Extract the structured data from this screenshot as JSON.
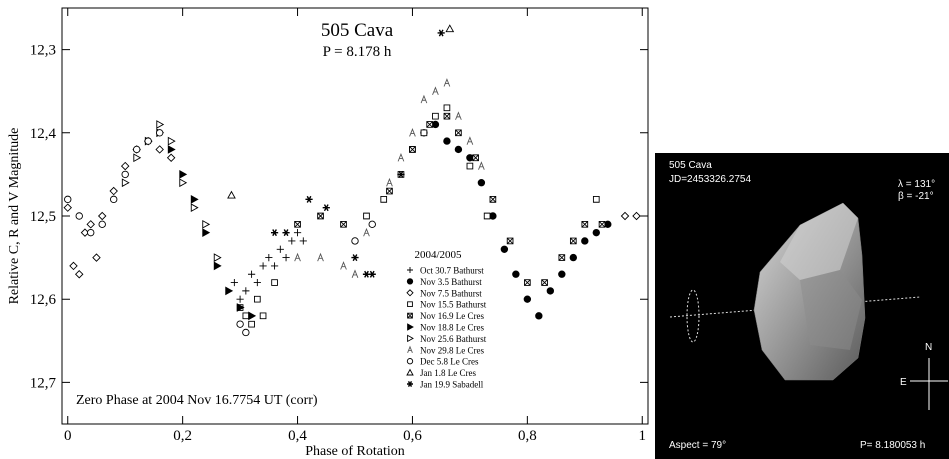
{
  "chart_data": {
    "type": "scatter",
    "title": "505 Cava",
    "subtitle": "P = 8.178 h",
    "annotation": "Zero Phase at 2004 Nov 16.7754 UT (corr)",
    "x_label": "Phase of Rotation",
    "y_label": "Relative C, R and V Magnitude",
    "xlim": [
      -0.01,
      1.01
    ],
    "xticks": [
      0,
      {
        "value": 0.2,
        "label": "0,2"
      },
      {
        "value": 0.4,
        "label": "0,4"
      },
      {
        "value": 0.6,
        "label": "0,6"
      },
      {
        "value": 0.8,
        "label": "0,8"
      },
      1
    ],
    "ylim": [
      12.25,
      12.75
    ],
    "y_inverted": true,
    "yticks": [
      {
        "value": 12.3,
        "label": "12,3"
      },
      {
        "value": 12.4,
        "label": "12,4"
      },
      {
        "value": 12.5,
        "label": "12,5"
      },
      {
        "value": 12.6,
        "label": "12,6"
      },
      {
        "value": 12.7,
        "label": "12,7"
      }
    ],
    "grid": false,
    "legend_title": "2004/2005",
    "legend_position": "lower right",
    "series": [
      {
        "name": "Oct 30.7 Bathurst",
        "marker": "plus",
        "color": "#000000",
        "x": [
          0.29,
          0.3,
          0.31,
          0.32,
          0.33,
          0.34,
          0.35,
          0.36,
          0.37,
          0.38,
          0.39,
          0.4,
          0.41
        ],
        "values": [
          12.58,
          12.6,
          12.59,
          12.57,
          12.58,
          12.56,
          12.55,
          12.56,
          12.54,
          12.55,
          12.53,
          12.52,
          12.53
        ]
      },
      {
        "name": "Nov 3.5 Bathurst",
        "marker": "circle-filled",
        "color": "#000000",
        "x": [
          0.62,
          0.64,
          0.66,
          0.68,
          0.7,
          0.72,
          0.74,
          0.76,
          0.78,
          0.8,
          0.82,
          0.84,
          0.86,
          0.88,
          0.9,
          0.92,
          0.94
        ],
        "values": [
          12.4,
          12.39,
          12.41,
          12.42,
          12.43,
          12.46,
          12.5,
          12.54,
          12.57,
          12.6,
          12.62,
          12.59,
          12.57,
          12.55,
          12.53,
          12.52,
          12.51
        ]
      },
      {
        "name": "Nov 7.5 Bathurst",
        "marker": "diamond",
        "color": "#000000",
        "x": [
          0.0,
          0.01,
          0.02,
          0.03,
          0.04,
          0.05,
          0.06,
          0.08,
          0.1,
          0.12,
          0.14,
          0.16,
          0.18,
          0.97,
          0.99
        ],
        "values": [
          12.49,
          12.56,
          12.57,
          12.52,
          12.51,
          12.55,
          12.5,
          12.47,
          12.44,
          12.42,
          12.41,
          12.42,
          12.43,
          12.5,
          12.5
        ]
      },
      {
        "name": "Nov 15.5 Bathurst",
        "marker": "square",
        "color": "#000000",
        "x": [
          0.3,
          0.31,
          0.32,
          0.33,
          0.34,
          0.36,
          0.52,
          0.55,
          0.58,
          0.6,
          0.62,
          0.64,
          0.66,
          0.7,
          0.73,
          0.92
        ],
        "values": [
          12.61,
          12.62,
          12.63,
          12.6,
          12.62,
          12.58,
          12.5,
          12.48,
          12.45,
          12.42,
          12.4,
          12.38,
          12.37,
          12.44,
          12.5,
          12.48
        ]
      },
      {
        "name": "Nov 16.9 Le Cres",
        "marker": "square-x",
        "color": "#000000",
        "x": [
          0.4,
          0.44,
          0.48,
          0.56,
          0.6,
          0.63,
          0.66,
          0.68,
          0.71,
          0.74,
          0.77,
          0.8,
          0.83,
          0.86,
          0.88,
          0.9,
          0.93
        ],
        "values": [
          12.51,
          12.5,
          12.51,
          12.47,
          12.42,
          12.39,
          12.38,
          12.4,
          12.43,
          12.48,
          12.53,
          12.58,
          12.58,
          12.55,
          12.53,
          12.51,
          12.51
        ]
      },
      {
        "name": "Nov 18.8 Le Cres",
        "marker": "triangle-right-filled",
        "color": "#000000",
        "x": [
          0.16,
          0.18,
          0.2,
          0.22,
          0.24,
          0.26,
          0.28,
          0.3,
          0.32
        ],
        "values": [
          12.4,
          12.42,
          12.45,
          12.48,
          12.52,
          12.56,
          12.59,
          12.61,
          12.62
        ]
      },
      {
        "name": "Nov 25.6 Bathurst",
        "marker": "triangle-right",
        "color": "#000000",
        "x": [
          0.1,
          0.12,
          0.14,
          0.16,
          0.18,
          0.2,
          0.22,
          0.24,
          0.26
        ],
        "values": [
          12.46,
          12.43,
          12.41,
          12.39,
          12.41,
          12.46,
          12.49,
          12.51,
          12.55
        ]
      },
      {
        "name": "Nov 29.8 Le Cres",
        "marker": "letter-a",
        "color": "#555555",
        "x": [
          0.4,
          0.44,
          0.48,
          0.5,
          0.52,
          0.56,
          0.58,
          0.6,
          0.62,
          0.64,
          0.66,
          0.68,
          0.7,
          0.72
        ],
        "values": [
          12.55,
          12.55,
          12.56,
          12.57,
          12.52,
          12.46,
          12.43,
          12.4,
          12.36,
          12.35,
          12.34,
          12.38,
          12.41,
          12.44
        ]
      },
      {
        "name": "Dec 5.8 Le Cres",
        "marker": "circle",
        "color": "#000000",
        "x": [
          0.0,
          0.02,
          0.04,
          0.06,
          0.08,
          0.1,
          0.12,
          0.14,
          0.16,
          0.3,
          0.31,
          0.5,
          0.53
        ],
        "values": [
          12.48,
          12.5,
          12.52,
          12.51,
          12.48,
          12.45,
          12.42,
          12.41,
          12.4,
          12.63,
          12.64,
          12.53,
          12.51
        ]
      },
      {
        "name": "Jan 1.8 Le Cres",
        "marker": "triangle-up",
        "color": "#000000",
        "x": [
          0.285,
          0.665
        ],
        "values": [
          12.475,
          12.275
        ]
      },
      {
        "name": "Jan 19.9 Sabadell",
        "marker": "asterisk",
        "color": "#000000",
        "x": [
          0.36,
          0.38,
          0.42,
          0.45,
          0.5,
          0.52,
          0.53,
          0.58,
          0.65
        ],
        "values": [
          12.52,
          12.52,
          12.48,
          12.49,
          12.55,
          12.57,
          12.57,
          12.45,
          12.28
        ]
      }
    ]
  },
  "model_view": {
    "name": "505 Cava",
    "jd": "JD=2453326.2754",
    "lambda": "λ = 131°",
    "beta": "β = -21°",
    "aspect": "Aspect = 79°",
    "period": "P= 8.180053 h",
    "north": "N",
    "east": "E"
  }
}
